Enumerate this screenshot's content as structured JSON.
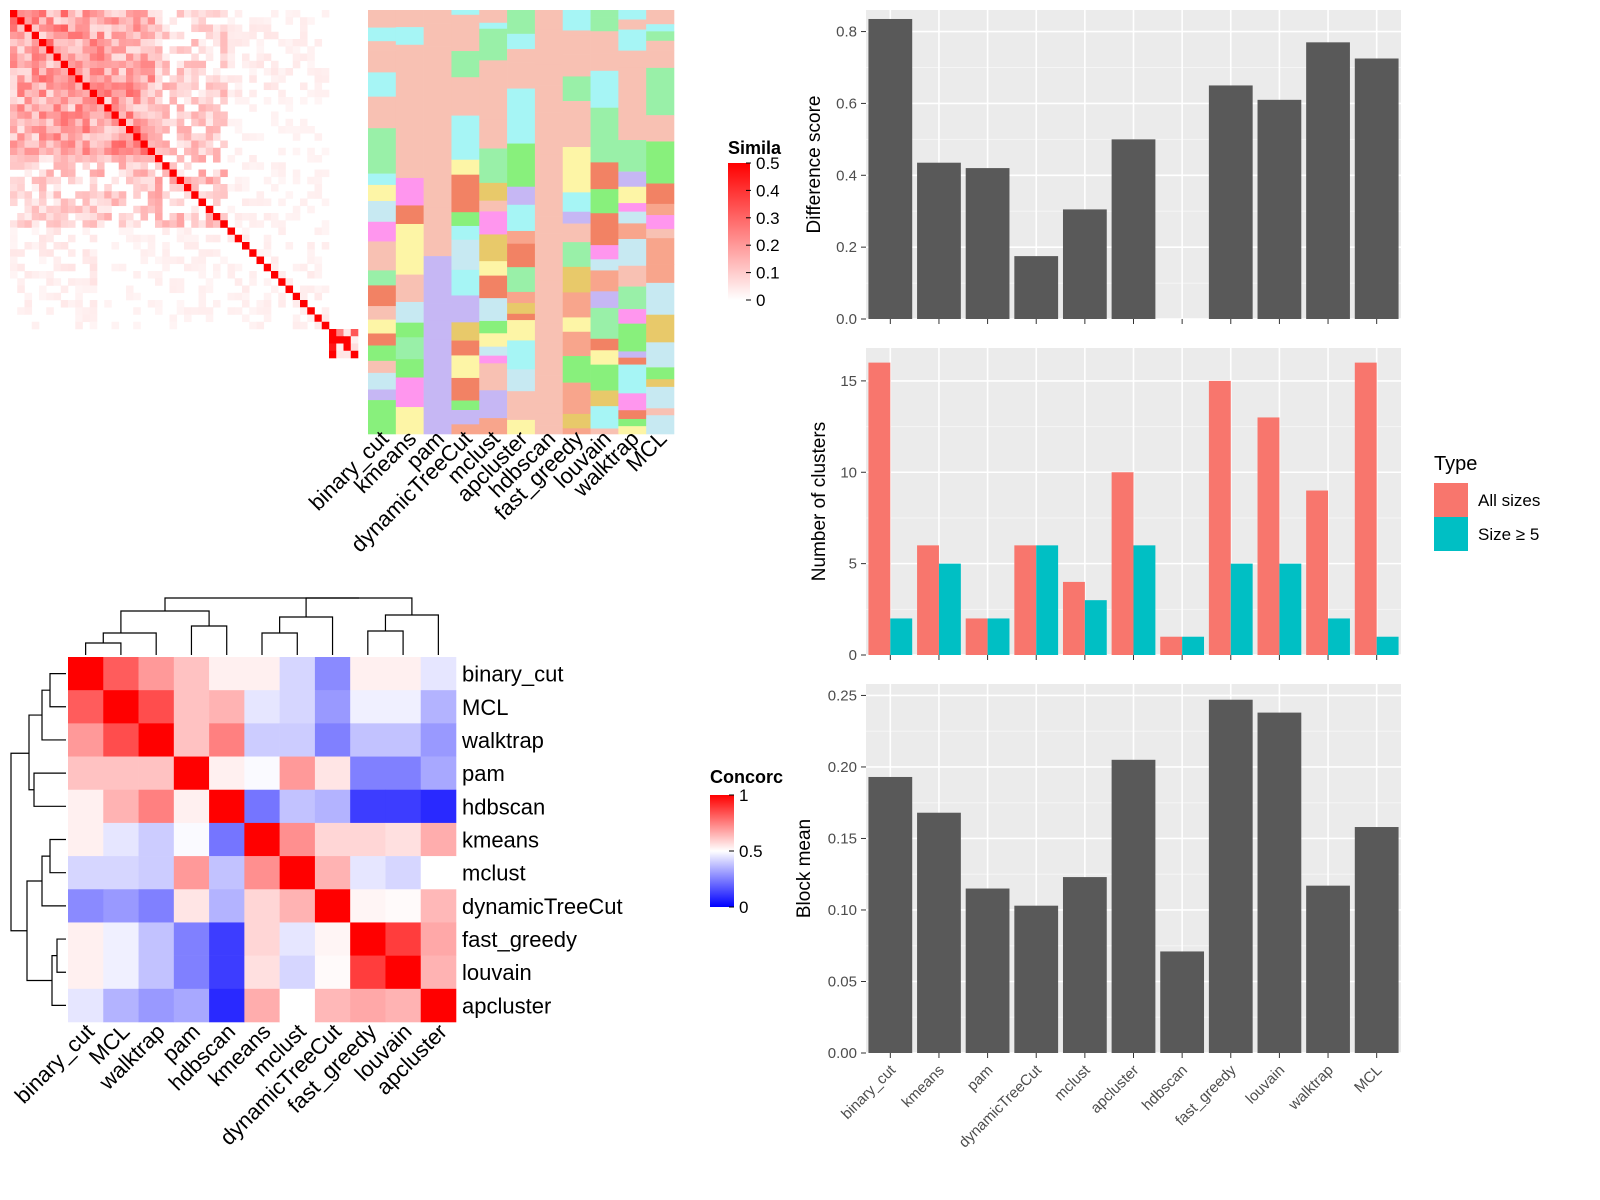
{
  "chart_data": [
    {
      "panel": "top-left",
      "type": "heatmap",
      "title": "",
      "legend": {
        "title": "Simila",
        "ticks": [
          "0",
          "0.1",
          "0.2",
          "0.3",
          "0.4",
          "0.5"
        ],
        "colors": [
          "#ffffff",
          "#ff0000"
        ]
      },
      "annotation_columns": [
        "binary_cut",
        "kmeans",
        "pam",
        "dynamicTreeCut",
        "mclust",
        "apcluster",
        "hdbscan",
        "fast_greedy",
        "louvain",
        "walktrap",
        "MCL"
      ]
    },
    {
      "panel": "top-right",
      "type": "bar",
      "categories": [
        "binary_cut",
        "kmeans",
        "pam",
        "dynamicTreeCut",
        "mclust",
        "apcluster",
        "hdbscan",
        "fast_greedy",
        "louvain",
        "walktrap",
        "MCL"
      ],
      "values": [
        0.835,
        0.435,
        0.42,
        0.175,
        0.305,
        0.5,
        null,
        0.65,
        0.61,
        0.77,
        0.725
      ],
      "ylabel": "Difference score",
      "yticks": [
        "0.0",
        "0.2",
        "0.4",
        "0.6",
        "0.8"
      ],
      "ylim": [
        0,
        0.86
      ],
      "bar_color": "#595959",
      "grid": true
    },
    {
      "panel": "middle-right",
      "type": "bar",
      "categories": [
        "binary_cut",
        "kmeans",
        "pam",
        "dynamicTreeCut",
        "mclust",
        "apcluster",
        "hdbscan",
        "fast_greedy",
        "louvain",
        "walktrap",
        "MCL"
      ],
      "series": [
        {
          "name": "All sizes",
          "values": [
            16,
            6,
            2,
            6,
            4,
            10,
            1,
            15,
            13,
            9,
            16
          ],
          "color": "#f8766d"
        },
        {
          "name": "Size ≥ 5",
          "values": [
            2,
            5,
            2,
            6,
            3,
            6,
            1,
            5,
            5,
            2,
            1
          ],
          "color": "#00bfc4"
        }
      ],
      "ylabel": "Number of clusters",
      "yticks": [
        "0",
        "5",
        "10",
        "15"
      ],
      "ylim": [
        0,
        16.8
      ],
      "legend_title": "Type",
      "legend_position": "right",
      "grid": true
    },
    {
      "panel": "bottom-right",
      "type": "bar",
      "categories": [
        "binary_cut",
        "kmeans",
        "pam",
        "dynamicTreeCut",
        "mclust",
        "apcluster",
        "hdbscan",
        "fast_greedy",
        "louvain",
        "walktrap",
        "MCL"
      ],
      "values": [
        0.193,
        0.168,
        0.115,
        0.103,
        0.123,
        0.205,
        0.071,
        0.247,
        0.238,
        0.117,
        0.158
      ],
      "ylabel": "Block mean",
      "yticks": [
        "0.00",
        "0.05",
        "0.10",
        "0.15",
        "0.20",
        "0.25"
      ],
      "ylim": [
        0,
        0.258
      ],
      "bar_color": "#595959",
      "grid": true
    },
    {
      "panel": "bottom-left",
      "type": "heatmap",
      "labels": [
        "binary_cut",
        "MCL",
        "walktrap",
        "pam",
        "hdbscan",
        "kmeans",
        "mclust",
        "dynamicTreeCut",
        "fast_greedy",
        "louvain",
        "apcluster"
      ],
      "matrix": [
        [
          1.0,
          0.82,
          0.7,
          0.62,
          0.53,
          0.53,
          0.42,
          0.27,
          0.53,
          0.53,
          0.45
        ],
        [
          0.82,
          1.0,
          0.85,
          0.62,
          0.65,
          0.45,
          0.42,
          0.3,
          0.47,
          0.47,
          0.35
        ],
        [
          0.7,
          0.85,
          1.0,
          0.62,
          0.75,
          0.4,
          0.4,
          0.25,
          0.38,
          0.38,
          0.3
        ],
        [
          0.62,
          0.62,
          0.62,
          1.0,
          0.53,
          0.49,
          0.7,
          0.55,
          0.25,
          0.25,
          0.33
        ],
        [
          0.53,
          0.65,
          0.75,
          0.53,
          1.0,
          0.23,
          0.38,
          0.35,
          0.12,
          0.12,
          0.08
        ],
        [
          0.53,
          0.45,
          0.4,
          0.49,
          0.23,
          1.0,
          0.72,
          0.58,
          0.58,
          0.56,
          0.66
        ],
        [
          0.42,
          0.42,
          0.4,
          0.7,
          0.38,
          0.72,
          1.0,
          0.65,
          0.45,
          0.42,
          0.5
        ],
        [
          0.27,
          0.3,
          0.25,
          0.55,
          0.35,
          0.58,
          0.65,
          1.0,
          0.52,
          0.51,
          0.64
        ],
        [
          0.53,
          0.47,
          0.38,
          0.25,
          0.12,
          0.58,
          0.45,
          0.52,
          1.0,
          0.88,
          0.67
        ],
        [
          0.53,
          0.47,
          0.38,
          0.25,
          0.12,
          0.56,
          0.42,
          0.51,
          0.88,
          1.0,
          0.65
        ],
        [
          0.45,
          0.35,
          0.3,
          0.33,
          0.08,
          0.66,
          0.5,
          0.64,
          0.67,
          0.65,
          1.0
        ]
      ],
      "legend": {
        "title": "Concorc",
        "ticks": [
          "0",
          "0.5",
          "1"
        ],
        "colors": [
          "#0000ff",
          "#ffffff",
          "#ff0000"
        ]
      }
    }
  ]
}
